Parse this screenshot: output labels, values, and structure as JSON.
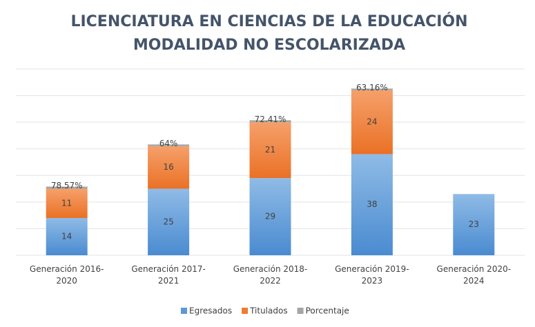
{
  "chart_data": {
    "type": "bar",
    "stacked": true,
    "title": [
      "LICENCIATURA EN CIENCIAS DE LA EDUCACIÓN",
      "MODALIDAD NO ESCOLARIZADA"
    ],
    "categories": [
      "Generación 2016-2020",
      "Generación 2017-2021",
      "Generación 2018-2022",
      "Generación 2019-2023",
      "Generación 2020-2024"
    ],
    "series": [
      {
        "name": "Egresados",
        "color": "#5b9bd5",
        "values": [
          14,
          25,
          29,
          38,
          23
        ]
      },
      {
        "name": "Titulados",
        "color": "#ed7d31",
        "values": [
          11,
          16,
          21,
          24,
          null
        ]
      },
      {
        "name": "Porcentaje",
        "color": "#a5a5a5",
        "values": [
          0.7857,
          0.64,
          0.7241,
          0.6316,
          null
        ],
        "value_labels": [
          "78.57%",
          "64%",
          "72.41%",
          "63.16%",
          null
        ]
      }
    ],
    "ylim": [
      0,
      70
    ],
    "yticks": [
      0,
      10,
      20,
      30,
      40,
      50,
      60,
      70
    ],
    "grid": true,
    "legend": "bottom"
  }
}
